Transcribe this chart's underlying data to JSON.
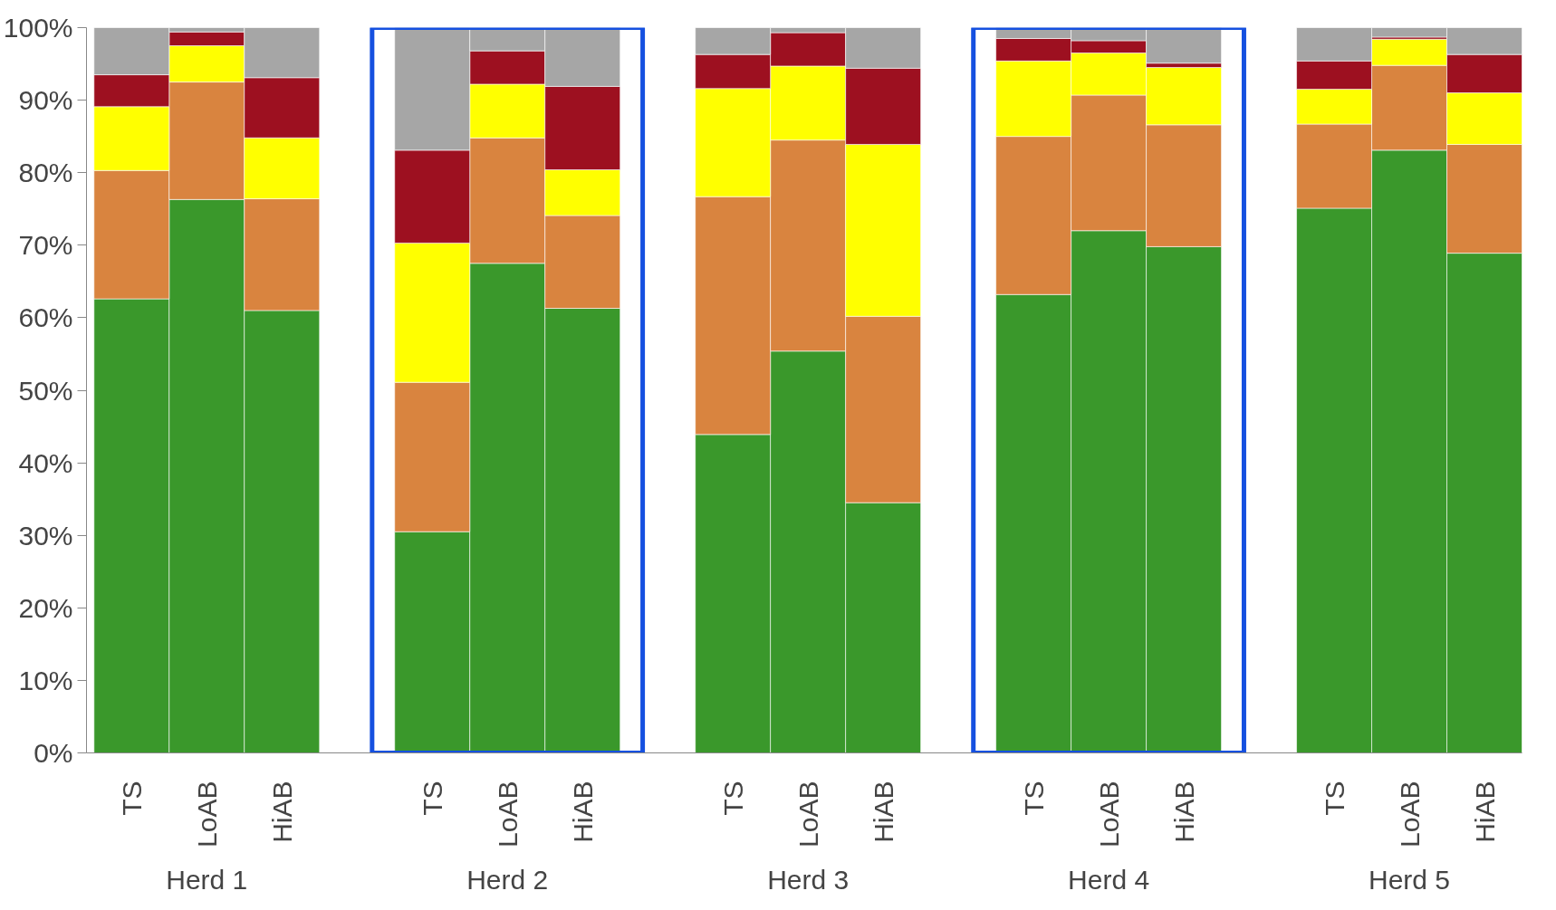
{
  "chart_data": {
    "type": "bar",
    "stacked": true,
    "categories": [
      "TS",
      "LoAB",
      "HiAB",
      "TS",
      "LoAB",
      "HiAB",
      "TS",
      "LoAB",
      "HiAB",
      "TS",
      "LoAB",
      "HiAB",
      "TS",
      "LoAB",
      "HiAB"
    ],
    "series": [
      {
        "color": "#3a982b",
        "values": [
          62.6,
          76.3,
          61.0,
          30.5,
          67.5,
          61.3,
          43.9,
          55.4,
          34.5,
          63.2,
          72.0,
          69.8,
          75.1,
          83.1,
          68.9
        ]
      },
      {
        "color": "#d9843f",
        "values": [
          17.7,
          16.2,
          15.4,
          20.6,
          17.3,
          12.8,
          32.8,
          29.1,
          25.7,
          21.8,
          18.7,
          16.8,
          11.6,
          11.7,
          15.0
        ]
      },
      {
        "color": "#ffff00",
        "values": [
          8.8,
          5.0,
          8.4,
          19.2,
          7.4,
          6.3,
          14.9,
          10.2,
          23.7,
          10.4,
          5.8,
          7.9,
          4.8,
          3.6,
          7.1
        ]
      },
      {
        "color": "#9d1020",
        "values": [
          4.4,
          1.9,
          8.3,
          12.8,
          4.6,
          11.5,
          4.7,
          4.6,
          10.5,
          3.1,
          1.7,
          0.6,
          3.9,
          0.3,
          5.3
        ]
      },
      {
        "color": "#a6a6a6",
        "values": [
          6.5,
          0.6,
          6.9,
          16.9,
          3.2,
          8.1,
          3.7,
          0.7,
          5.6,
          1.5,
          1.8,
          4.9,
          4.6,
          1.3,
          3.7
        ]
      }
    ],
    "ylim": [
      0,
      100
    ],
    "yticks": [
      {
        "value": 0,
        "label": "0%"
      },
      {
        "value": 10,
        "label": "10%"
      },
      {
        "value": 20,
        "label": "20%"
      },
      {
        "value": 30,
        "label": "30%"
      },
      {
        "value": 40,
        "label": "40%"
      },
      {
        "value": 50,
        "label": "50%"
      },
      {
        "value": 60,
        "label": "60%"
      },
      {
        "value": 70,
        "label": "70%"
      },
      {
        "value": 80,
        "label": "80%"
      },
      {
        "value": 90,
        "label": "90%"
      },
      {
        "value": 100,
        "label": "100%"
      }
    ],
    "annotations": [
      "Herd 1",
      "Herd 2",
      "Herd 3",
      "Herd 4",
      "Herd 5"
    ],
    "grid": false
  }
}
